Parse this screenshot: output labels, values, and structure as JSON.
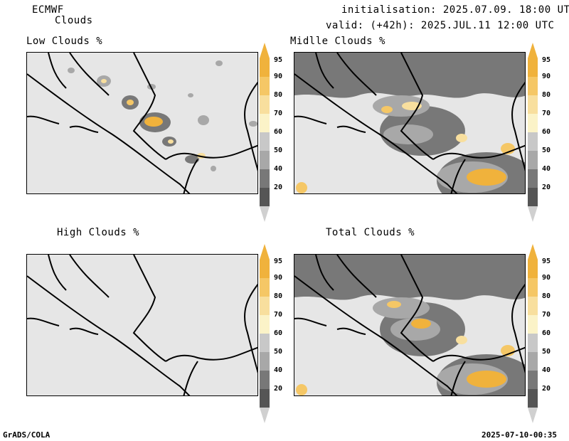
{
  "header": {
    "model": "ECMWF",
    "product": "Clouds",
    "init": "initialisation: 2025.07.09. 18:00 UTC",
    "valid": "valid: (+42h): 2025.JUL.11 12:00 UTC"
  },
  "panels": {
    "low": {
      "title": "Low Clouds %"
    },
    "middle": {
      "title": "Midlle Clouds %"
    },
    "high": {
      "title": "High Clouds %"
    },
    "total": {
      "title": "Total Clouds %"
    }
  },
  "colorbar": {
    "labels": [
      "95",
      "90",
      "80",
      "70",
      "60",
      "50",
      "40",
      "20"
    ],
    "colors": [
      "#f0b23c",
      "#f5c766",
      "#f8df9e",
      "#fbf3c8",
      "#c8c8c8",
      "#a8a8a8",
      "#787878",
      "#555555"
    ],
    "below_color": "#ffffff",
    "above_color": "#f0b23c"
  },
  "footer": {
    "left": "GrADS/COLA",
    "right": "2025-07-10-00:35"
  }
}
